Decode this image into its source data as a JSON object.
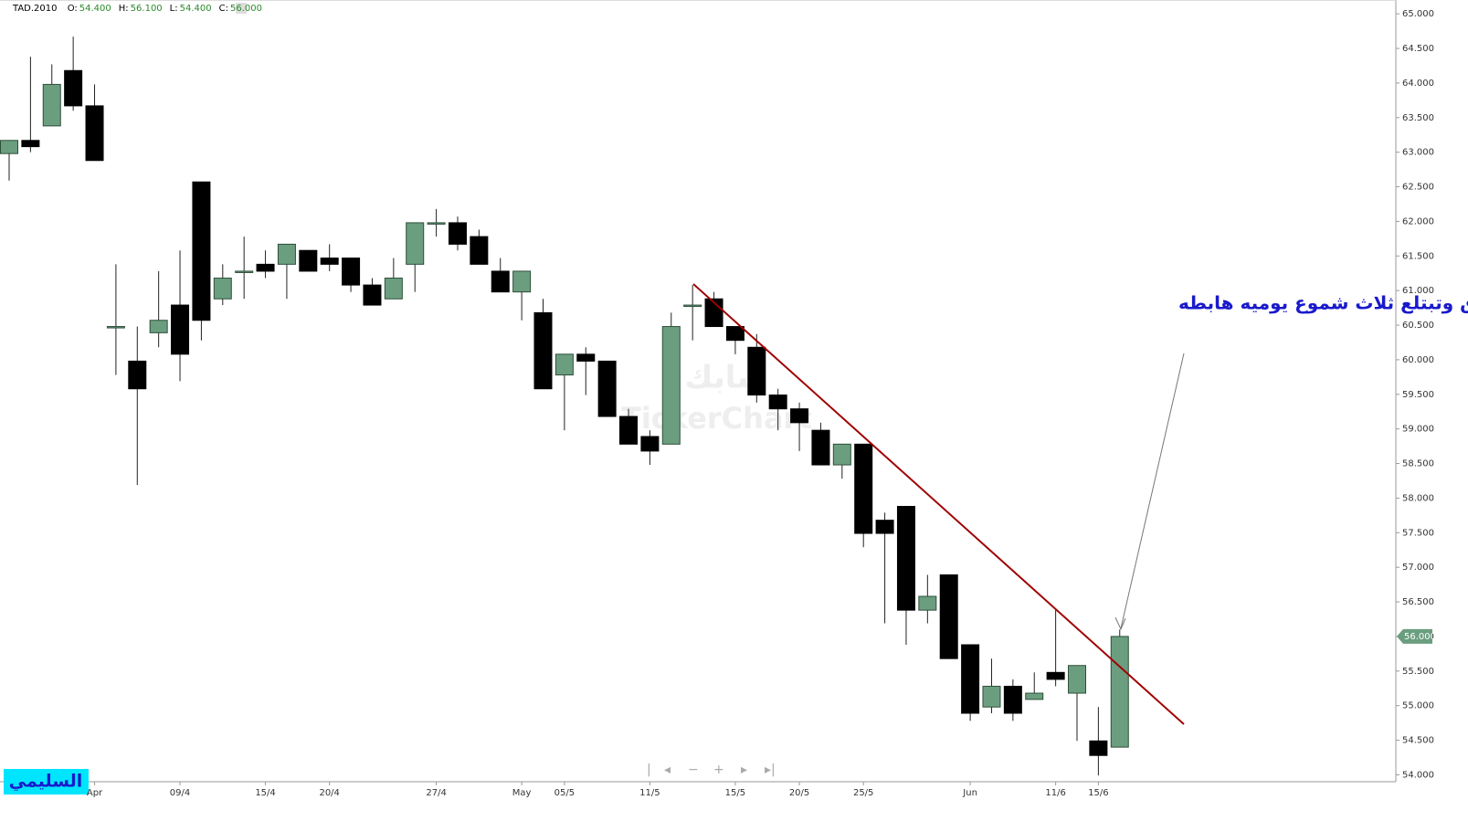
{
  "header": {
    "symbol": "TAD.2010",
    "fields": [
      {
        "name": "O:",
        "value": "54.400"
      },
      {
        "name": "H:",
        "value": "56.100"
      },
      {
        "name": "L:",
        "value": "54.400"
      },
      {
        "name": "C:",
        "value": "56.000"
      }
    ]
  },
  "chart_data": {
    "type": "candlestick",
    "annotation": "سابك تخترق وتبتلع ثلاث شموع يوميه هابطه",
    "watermark": [
      "سابك",
      "TickerChart"
    ],
    "author": "السليمي",
    "up_color": "#6a9e7f",
    "down_color": "#000000",
    "categories": [
      null,
      null,
      null,
      null,
      "Apr",
      null,
      null,
      null,
      "09/4",
      null,
      null,
      null,
      "15/4",
      null,
      null,
      "20/4",
      null,
      null,
      null,
      null,
      "27/4",
      null,
      null,
      null,
      "May",
      null,
      "05/5",
      null,
      null,
      null,
      "11/5",
      null,
      null,
      null,
      "15/5",
      null,
      null,
      "20/5",
      null,
      null,
      "25/5",
      null,
      null,
      null,
      null,
      "Jun",
      null,
      null,
      null,
      "11/6",
      null,
      "15/6",
      null
    ],
    "open": [
      62.98,
      63.17,
      63.38,
      64.18,
      63.67,
      60.48,
      59.98,
      60.39,
      60.79,
      62.57,
      60.88,
      61.28,
      61.38,
      61.38,
      61.58,
      61.47,
      61.47,
      61.08,
      60.88,
      61.38,
      61.98,
      61.98,
      61.78,
      61.28,
      60.98,
      60.68,
      59.78,
      60.08,
      59.98,
      59.18,
      58.89,
      58.78,
      60.79,
      60.88,
      60.48,
      60.18,
      59.49,
      59.29,
      58.98,
      58.48,
      58.78,
      57.68,
      57.88,
      56.38,
      56.89,
      55.88,
      54.98,
      55.28,
      55.09,
      55.48,
      55.18,
      54.49,
      54.4
    ],
    "high": [
      63.17,
      64.38,
      64.27,
      64.67,
      63.98,
      61.38,
      60.48,
      61.28,
      61.58,
      62.57,
      61.38,
      61.78,
      61.58,
      61.67,
      61.58,
      61.67,
      61.47,
      61.18,
      61.47,
      61.98,
      62.18,
      62.07,
      61.88,
      61.47,
      61.28,
      60.88,
      60.08,
      60.18,
      59.98,
      59.29,
      58.98,
      60.68,
      61.08,
      60.98,
      60.48,
      60.37,
      59.58,
      59.38,
      59.09,
      58.78,
      58.78,
      57.79,
      57.88,
      56.89,
      56.89,
      55.88,
      55.68,
      55.38,
      55.48,
      56.38,
      55.58,
      54.98,
      56.1
    ],
    "low": [
      62.59,
      63.0,
      63.38,
      63.6,
      62.88,
      59.78,
      58.19,
      60.18,
      59.69,
      60.28,
      60.79,
      60.88,
      61.18,
      60.88,
      61.28,
      61.28,
      60.98,
      60.79,
      60.88,
      60.98,
      61.78,
      61.58,
      61.38,
      60.98,
      60.57,
      59.58,
      58.98,
      59.49,
      59.18,
      58.78,
      58.48,
      58.78,
      60.28,
      60.48,
      60.08,
      59.38,
      58.98,
      58.68,
      58.48,
      58.28,
      57.29,
      56.19,
      55.88,
      56.19,
      55.68,
      54.78,
      54.89,
      54.78,
      55.09,
      55.28,
      54.49,
      53.99,
      54.4
    ],
    "close": [
      63.17,
      63.08,
      63.98,
      63.67,
      62.88,
      60.48,
      59.58,
      60.57,
      60.08,
      60.57,
      61.18,
      61.28,
      61.28,
      61.67,
      61.28,
      61.38,
      61.08,
      60.79,
      61.18,
      61.98,
      61.98,
      61.67,
      61.38,
      60.98,
      61.28,
      59.58,
      60.08,
      59.98,
      59.18,
      58.78,
      58.68,
      60.48,
      60.79,
      60.48,
      60.28,
      59.49,
      59.29,
      59.09,
      58.48,
      58.78,
      57.49,
      57.49,
      56.38,
      56.58,
      55.68,
      54.89,
      55.28,
      54.89,
      55.18,
      55.38,
      55.58,
      54.28,
      56.0
    ],
    "last_price": {
      "value": 56.0,
      "label": "56.000"
    },
    "ylim": [
      53.9,
      65.2
    ],
    "yticks": [
      {
        "value": 54,
        "label": "54.000"
      },
      {
        "value": 54.5,
        "label": "54.500"
      },
      {
        "value": 55,
        "label": "55.000"
      },
      {
        "value": 55.5,
        "label": "55.500"
      },
      {
        "value": 56,
        "label": "56.000"
      },
      {
        "value": 56.5,
        "label": "56.500"
      },
      {
        "value": 57,
        "label": "57.000"
      },
      {
        "value": 57.5,
        "label": "57.500"
      },
      {
        "value": 58,
        "label": "58.000"
      },
      {
        "value": 58.5,
        "label": "58.500"
      },
      {
        "value": 59,
        "label": "59.000"
      },
      {
        "value": 59.5,
        "label": "59.500"
      },
      {
        "value": 60,
        "label": "60.000"
      },
      {
        "value": 60.5,
        "label": "60.500"
      },
      {
        "value": 61,
        "label": "61.000"
      },
      {
        "value": 61.5,
        "label": "61.500"
      },
      {
        "value": 62,
        "label": "62.000"
      },
      {
        "value": 62.5,
        "label": "62.500"
      },
      {
        "value": 63,
        "label": "63.000"
      },
      {
        "value": 63.5,
        "label": "63.500"
      },
      {
        "value": 64,
        "label": "64.000"
      },
      {
        "value": 64.5,
        "label": "64.500"
      },
      {
        "value": 65,
        "label": "65.000"
      }
    ]
  }
}
